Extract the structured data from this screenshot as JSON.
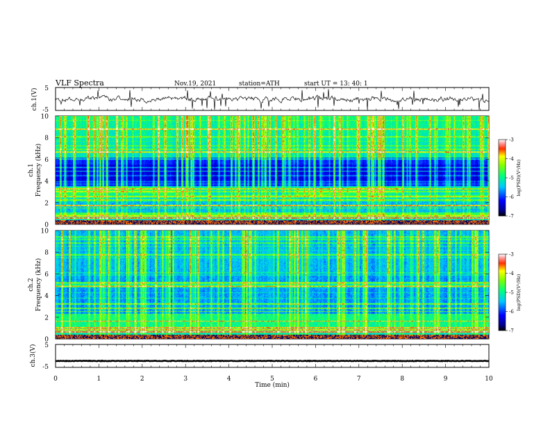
{
  "header": {
    "title": "VLF  Spectra",
    "date": "Nov.19, 2021",
    "station": "station=ATH",
    "start": "start  UT  =    13: 40: 1"
  },
  "chart_data": {
    "type": "heatmap",
    "x": {
      "label": "Time  (min)",
      "range": [
        0,
        10
      ],
      "ticks": [
        "0",
        "1",
        "2",
        "3",
        "4",
        "5",
        "6",
        "7",
        "8",
        "9",
        "10"
      ]
    },
    "panels": [
      {
        "kind": "waveform",
        "ylabel": "ch.1(V)",
        "ylim": [
          -5,
          5
        ],
        "yticks": [
          "5",
          "-5"
        ],
        "baseline": 0
      },
      {
        "kind": "spectrogram",
        "ylabel_channel": "ch.1",
        "ylabel": "Frequency  (kHz)",
        "ylim": [
          0,
          10
        ],
        "yticks": [
          "0",
          "2",
          "4",
          "6",
          "8",
          "10"
        ],
        "colorbar": {
          "label": "log(PSD)(V²/Hz)",
          "range": [
            -7,
            -3
          ],
          "ticks": [
            "-3",
            "-4",
            "-5",
            "-6",
            "-7"
          ]
        }
      },
      {
        "kind": "spectrogram",
        "ylabel_channel": "ch.2",
        "ylabel": "Frequency  (kHz)",
        "ylim": [
          0,
          10
        ],
        "yticks": [
          "0",
          "2",
          "4",
          "6",
          "8",
          "10"
        ],
        "colorbar": {
          "label": "log(PSD)(V²/Hz)",
          "range": [
            -7,
            -3
          ],
          "ticks": [
            "-3",
            "-4",
            "-5",
            "-6",
            "-7"
          ]
        }
      },
      {
        "kind": "waveform",
        "ylabel": "ch.3(V)",
        "ylim": [
          -5,
          5
        ],
        "yticks": [
          "5",
          "-5"
        ],
        "baseline": -2.2
      }
    ]
  }
}
